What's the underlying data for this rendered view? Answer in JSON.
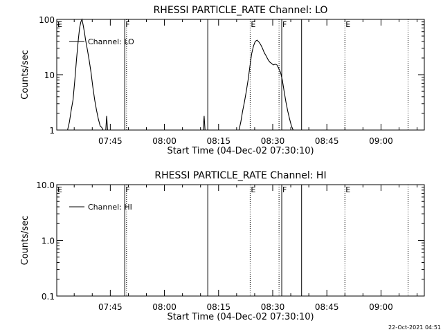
{
  "footer": {
    "timestamp": "22-Oct-2021 04:51"
  },
  "chart_data": [
    {
      "type": "line",
      "title": "RHESSI PARTICLE_RATE Channel: LO",
      "xlabel": "Start Time (04-Dec-02 07:30:10)",
      "ylabel": "Counts/sec",
      "y_scale": "log",
      "ylim": [
        1,
        100
      ],
      "yticks": [
        1,
        10,
        100
      ],
      "ytick_labels": [
        "1",
        "10",
        "100"
      ],
      "xlim": [
        "07:30:10",
        "09:12:00"
      ],
      "xtick_labels": [
        "07:45",
        "08:00",
        "08:15",
        "08:30",
        "08:45",
        "09:00"
      ],
      "legend": "Channel: LO",
      "legend_position": "top-left",
      "grid": false,
      "series": [
        {
          "name": "Channel: LO",
          "x": [
            "07:33:10",
            "07:33:40",
            "07:34:10",
            "07:34:40",
            "07:35:10",
            "07:35:40",
            "07:36:10",
            "07:36:30",
            "07:36:50",
            "07:37:10",
            "07:37:30",
            "07:37:50",
            "07:38:10",
            "07:38:40",
            "07:39:10",
            "07:39:40",
            "07:40:10",
            "07:40:40",
            "07:41:10",
            "07:41:40",
            "07:42:10",
            "07:42:40",
            "07:43:00"
          ],
          "y": [
            1,
            1.4,
            2.3,
            3.5,
            8,
            20,
            45,
            70,
            90,
            100,
            78,
            58,
            42,
            28,
            18,
            11,
            6,
            3.5,
            2.3,
            1.6,
            1.2,
            1.1,
            1
          ]
        },
        {
          "name": "Channel: LO",
          "x": [
            "07:43:45",
            "07:44:00",
            "07:44:15"
          ],
          "y": [
            1,
            1.8,
            1
          ]
        },
        {
          "name": "Channel: LO",
          "x": [
            "08:10:45",
            "08:11:00",
            "08:11:15"
          ],
          "y": [
            1,
            1.8,
            1
          ]
        },
        {
          "name": "Channel: LO",
          "x": [
            "08:20:40",
            "08:21:10",
            "08:21:40",
            "08:22:10",
            "08:22:40",
            "08:23:10",
            "08:23:40",
            "08:24:10",
            "08:24:40",
            "08:25:10",
            "08:25:40",
            "08:26:10",
            "08:26:40",
            "08:27:10",
            "08:27:40",
            "08:28:10",
            "08:28:40",
            "08:29:10",
            "08:29:40",
            "08:30:10",
            "08:30:40",
            "08:31:10",
            "08:31:40",
            "08:32:10",
            "08:32:40",
            "08:33:10",
            "08:33:40",
            "08:34:10",
            "08:34:40",
            "08:35:10",
            "08:35:40"
          ],
          "y": [
            1,
            1.4,
            2.2,
            3.2,
            5,
            8,
            14,
            24,
            33,
            40,
            42,
            39,
            35,
            30,
            25,
            22,
            19,
            17,
            16,
            15,
            15.5,
            15,
            13,
            11,
            8,
            5,
            3.2,
            2.2,
            1.6,
            1.2,
            1
          ]
        }
      ],
      "vertical_markers": [
        {
          "time": "07:30:10",
          "label": "E",
          "style": "dotted"
        },
        {
          "time": "07:49:00",
          "label": "F",
          "style": "solid"
        },
        {
          "time": "07:49:30",
          "label": "",
          "style": "dotted"
        },
        {
          "time": "08:12:00",
          "label": "",
          "style": "solid"
        },
        {
          "time": "08:23:45",
          "label": "E",
          "style": "dotted"
        },
        {
          "time": "08:31:45",
          "label": "",
          "style": "dotted"
        },
        {
          "time": "08:32:30",
          "label": "F",
          "style": "solid"
        },
        {
          "time": "08:38:00",
          "label": "",
          "style": "solid"
        },
        {
          "time": "08:50:00",
          "label": "E",
          "style": "dotted"
        },
        {
          "time": "09:07:30",
          "label": "",
          "style": "dotted"
        }
      ]
    },
    {
      "type": "line",
      "title": "RHESSI PARTICLE_RATE Channel: HI",
      "xlabel": "Start Time (04-Dec-02 07:30:10)",
      "ylabel": "Counts/sec",
      "y_scale": "log",
      "ylim": [
        0.1,
        10
      ],
      "yticks": [
        0.1,
        1,
        10
      ],
      "ytick_labels": [
        "0.1",
        "1.0",
        "10.0"
      ],
      "xlim": [
        "07:30:10",
        "09:12:00"
      ],
      "xtick_labels": [
        "07:45",
        "08:00",
        "08:15",
        "08:30",
        "08:45",
        "09:00"
      ],
      "legend": "Channel: HI",
      "legend_position": "top-left",
      "grid": false,
      "series": [
        {
          "name": "Channel: HI",
          "x": [],
          "y": []
        }
      ],
      "vertical_markers": [
        {
          "time": "07:30:10",
          "label": "E",
          "style": "dotted"
        },
        {
          "time": "07:49:00",
          "label": "F",
          "style": "solid"
        },
        {
          "time": "07:49:30",
          "label": "",
          "style": "dotted"
        },
        {
          "time": "08:12:00",
          "label": "",
          "style": "solid"
        },
        {
          "time": "08:23:45",
          "label": "E",
          "style": "dotted"
        },
        {
          "time": "08:31:45",
          "label": "",
          "style": "dotted"
        },
        {
          "time": "08:32:30",
          "label": "F",
          "style": "solid"
        },
        {
          "time": "08:38:00",
          "label": "",
          "style": "solid"
        },
        {
          "time": "08:50:00",
          "label": "E",
          "style": "dotted"
        },
        {
          "time": "09:07:30",
          "label": "",
          "style": "dotted"
        }
      ]
    }
  ]
}
